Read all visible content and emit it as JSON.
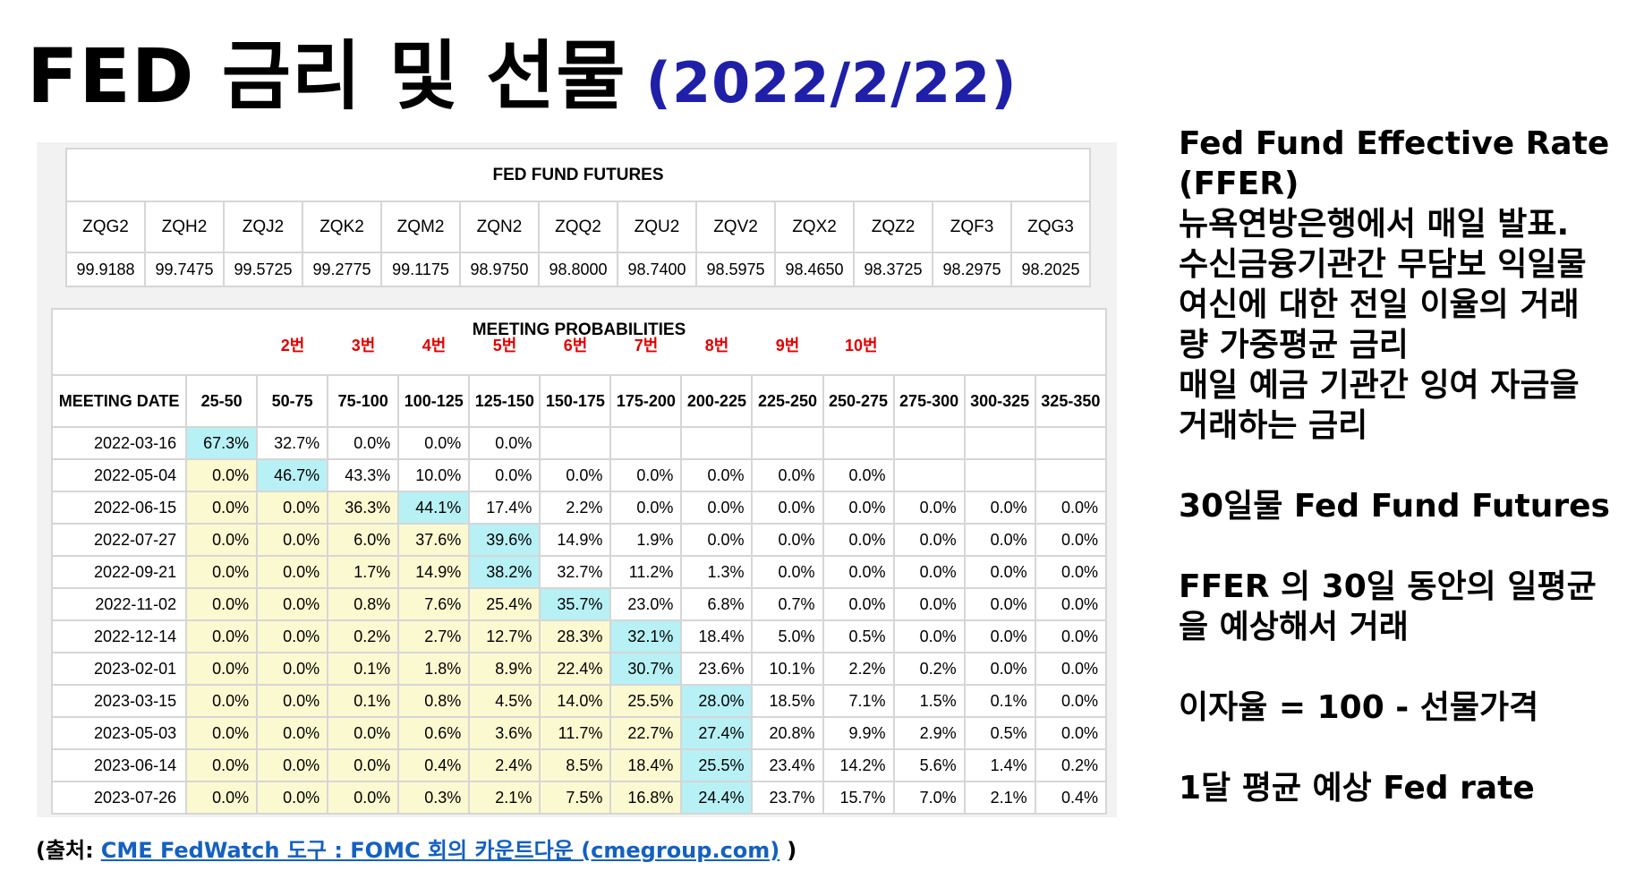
{
  "header": {
    "title": "FED 금리 및 선물",
    "date": "(2022/2/22)"
  },
  "futures": {
    "title": "FED FUND FUTURES",
    "codes": [
      "ZQG2",
      "ZQH2",
      "ZQJ2",
      "ZQK2",
      "ZQM2",
      "ZQN2",
      "ZQQ2",
      "ZQU2",
      "ZQV2",
      "ZQX2",
      "ZQZ2",
      "ZQF3",
      "ZQG3"
    ],
    "prices": [
      "99.9188",
      "99.7475",
      "99.5725",
      "99.2775",
      "99.1175",
      "98.9750",
      "98.8000",
      "98.7400",
      "98.5975",
      "98.4650",
      "98.3725",
      "98.2975",
      "98.2025"
    ]
  },
  "probabilities": {
    "title": "MEETING PROBABILITIES",
    "date_header": "MEETING DATE",
    "columns": [
      "25-50",
      "50-75",
      "75-100",
      "100-125",
      "125-150",
      "150-175",
      "175-200",
      "200-225",
      "225-250",
      "250-275",
      "275-300",
      "300-325",
      "325-350"
    ],
    "annotations": [
      null,
      "2번",
      "3번",
      "4번",
      "5번",
      "6번",
      "7번",
      "8번",
      "9번",
      "10번",
      null,
      null,
      null
    ],
    "rows": [
      {
        "date": "2022-03-16",
        "values": [
          "67.3%",
          "32.7%",
          "0.0%",
          "0.0%",
          "0.0%"
        ]
      },
      {
        "date": "2022-05-04",
        "values": [
          "0.0%",
          "46.7%",
          "43.3%",
          "10.0%",
          "0.0%",
          "0.0%",
          "0.0%",
          "0.0%",
          "0.0%",
          "0.0%"
        ]
      },
      {
        "date": "2022-06-15",
        "values": [
          "0.0%",
          "0.0%",
          "36.3%",
          "44.1%",
          "17.4%",
          "2.2%",
          "0.0%",
          "0.0%",
          "0.0%",
          "0.0%",
          "0.0%",
          "0.0%",
          "0.0%"
        ]
      },
      {
        "date": "2022-07-27",
        "values": [
          "0.0%",
          "0.0%",
          "6.0%",
          "37.6%",
          "39.6%",
          "14.9%",
          "1.9%",
          "0.0%",
          "0.0%",
          "0.0%",
          "0.0%",
          "0.0%",
          "0.0%"
        ]
      },
      {
        "date": "2022-09-21",
        "values": [
          "0.0%",
          "0.0%",
          "1.7%",
          "14.9%",
          "38.2%",
          "32.7%",
          "11.2%",
          "1.3%",
          "0.0%",
          "0.0%",
          "0.0%",
          "0.0%",
          "0.0%"
        ]
      },
      {
        "date": "2022-11-02",
        "values": [
          "0.0%",
          "0.0%",
          "0.8%",
          "7.6%",
          "25.4%",
          "35.7%",
          "23.0%",
          "6.8%",
          "0.7%",
          "0.0%",
          "0.0%",
          "0.0%",
          "0.0%"
        ]
      },
      {
        "date": "2022-12-14",
        "values": [
          "0.0%",
          "0.0%",
          "0.2%",
          "2.7%",
          "12.7%",
          "28.3%",
          "32.1%",
          "18.4%",
          "5.0%",
          "0.5%",
          "0.0%",
          "0.0%",
          "0.0%"
        ]
      },
      {
        "date": "2023-02-01",
        "values": [
          "0.0%",
          "0.0%",
          "0.1%",
          "1.8%",
          "8.9%",
          "22.4%",
          "30.7%",
          "23.6%",
          "10.1%",
          "2.2%",
          "0.2%",
          "0.0%",
          "0.0%"
        ]
      },
      {
        "date": "2023-03-15",
        "values": [
          "0.0%",
          "0.0%",
          "0.1%",
          "0.8%",
          "4.5%",
          "14.0%",
          "25.5%",
          "28.0%",
          "18.5%",
          "7.1%",
          "1.5%",
          "0.1%",
          "0.0%"
        ]
      },
      {
        "date": "2023-05-03",
        "values": [
          "0.0%",
          "0.0%",
          "0.0%",
          "0.6%",
          "3.6%",
          "11.7%",
          "22.7%",
          "27.4%",
          "20.8%",
          "9.9%",
          "2.9%",
          "0.5%",
          "0.0%"
        ]
      },
      {
        "date": "2023-06-14",
        "values": [
          "0.0%",
          "0.0%",
          "0.0%",
          "0.4%",
          "2.4%",
          "8.5%",
          "18.4%",
          "25.5%",
          "23.4%",
          "14.2%",
          "5.6%",
          "1.4%",
          "0.2%"
        ]
      },
      {
        "date": "2023-07-26",
        "values": [
          "0.0%",
          "0.0%",
          "0.0%",
          "0.3%",
          "2.1%",
          "7.5%",
          "16.8%",
          "24.4%",
          "23.7%",
          "15.7%",
          "7.0%",
          "2.1%",
          "0.4%"
        ]
      }
    ]
  },
  "notes": [
    [
      "Fed Fund Effective Rate",
      "(FFER)",
      "뉴욕연방은행에서 매일 발표.",
      "수신금융기관간 무담보 익일물",
      "여신에 대한 전일 이율의 거래",
      "량 가중평균 금리",
      "매일 예금 기관간 잉여 자금을",
      "거래하는 금리"
    ],
    [
      "30일물 Fed Fund Futures"
    ],
    [
      "FFER 의 30일 동안의 일평균",
      "을 예상해서 거래"
    ],
    [
      "이자율 = 100 - 선물가격"
    ],
    [
      "1달 평균 예상 Fed rate"
    ]
  ],
  "source": {
    "prefix": "(출처:",
    "link": "CME FedWatch 도구 : FOMC 회의 카운트다운 (cmegroup.com)",
    "suffix": ")"
  }
}
